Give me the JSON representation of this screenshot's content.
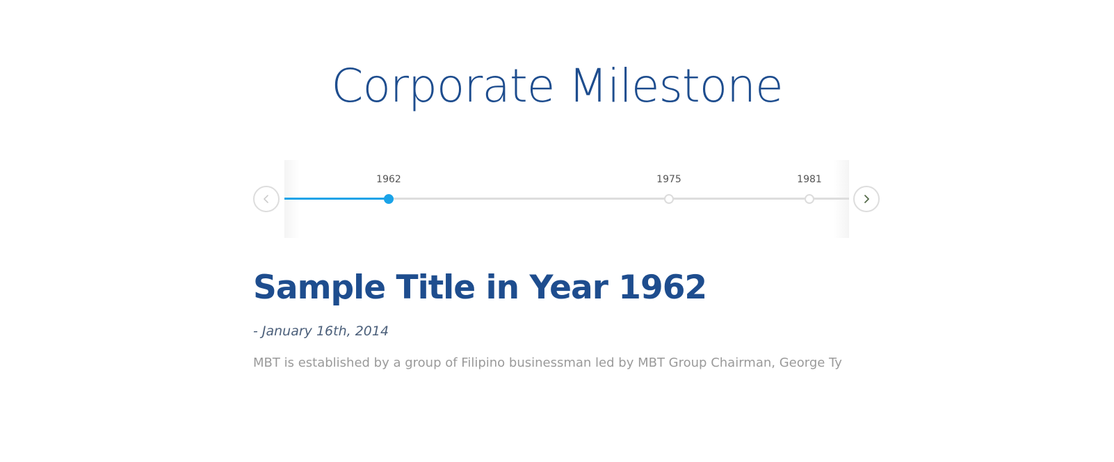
{
  "section": {
    "title": "Corporate Milestone"
  },
  "timeline": {
    "events": [
      {
        "year": "1962",
        "active": true
      },
      {
        "year": "1975",
        "active": false
      },
      {
        "year": "1981",
        "active": false
      }
    ],
    "prev_icon": "chevron-left-icon",
    "next_icon": "chevron-right-icon"
  },
  "milestone": {
    "title": "Sample Title in Year 1962",
    "date": "- January 16th, 2014",
    "description": "MBT is established by a group of Filipino businessman led by MBT Group Chairman, George Ty"
  },
  "colors": {
    "primary": "#1e4d8e",
    "accent": "#1aa3e8",
    "track": "#dddddd",
    "muted_text": "#9a9a9a"
  }
}
